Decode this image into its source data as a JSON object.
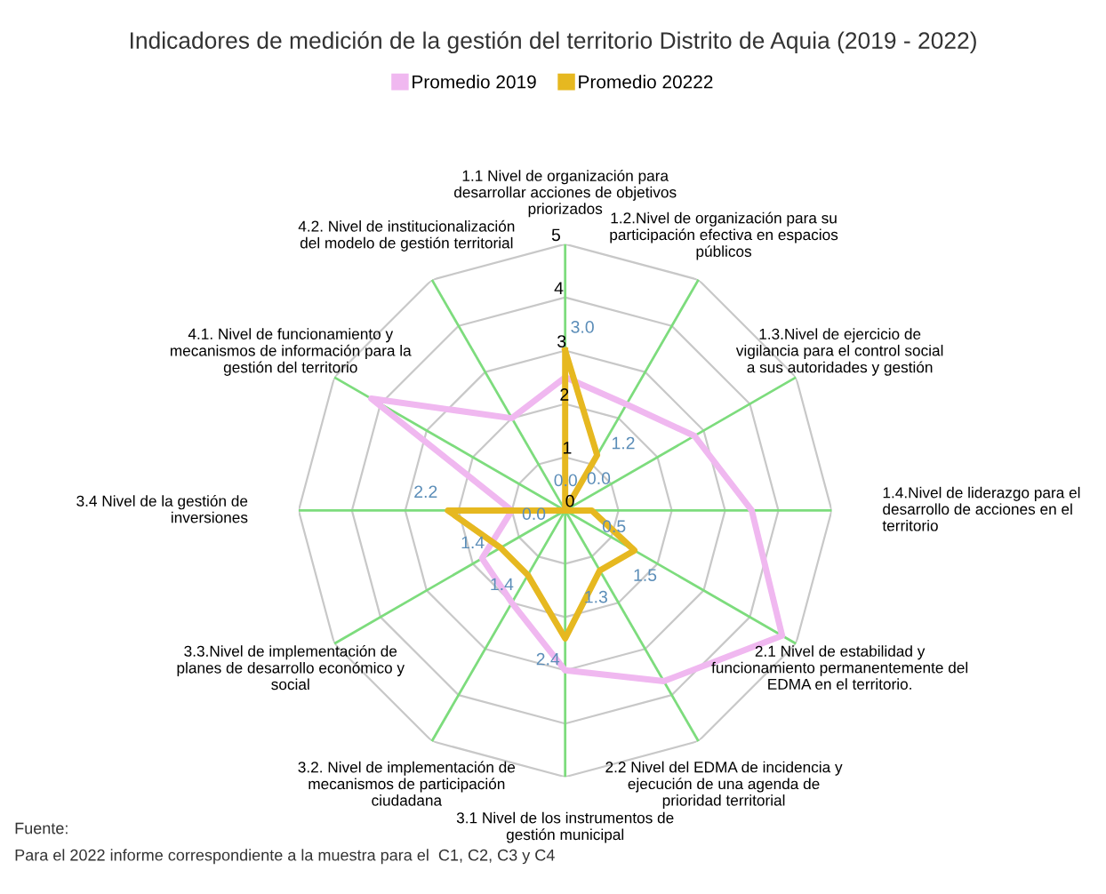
{
  "chart_data": {
    "type": "radar",
    "title": "Indicadores de medición de la gestión del territorio Distrito de Aquia (2019 - 2022)",
    "categories": [
      "1.1 Nivel de organización para desarrollar acciones de objetivos priorizados",
      "1.2.Nivel de organización para su participación efectiva en espacios públicos",
      "1.3.Nivel de ejercicio de vigilancia para el control social a sus autoridades y gestión",
      "1.4.Nivel de liderazgo para el desarrollo de acciones en el territorio",
      "2.1 Nivel de estabilidad y funcionamiento permanentemente del EDMA en el territorio.",
      "2.2 Nivel del EDMA de incidencia y ejecución de una agenda de prioridad territorial",
      "3.1 Nivel de los instrumentos de gestión municipal",
      "3.2. Nivel de implementación de mecanismos de participación ciudadana",
      "3.3.Nivel de implementación de planes de desarrollo económico y social",
      "3.4 Nivel de la gestión de inversiones",
      "4.1. Nivel de funcionamiento y mecanismos de información para la gestión del territorio",
      "4.2. Nivel de institucionalización del modelo de gestión territorial"
    ],
    "series": [
      {
        "name": "Promedio 2019",
        "color": "#f0b8f0",
        "values": [
          2.5,
          2.3,
          2.8,
          3.5,
          4.7,
          3.7,
          3.0,
          2.0,
          1.8,
          1.0,
          4.2,
          2.0
        ]
      },
      {
        "name": "Promedio 20222",
        "color": "#e6b820",
        "values": [
          3.0,
          1.2,
          0.0,
          0.5,
          1.5,
          1.3,
          2.4,
          1.4,
          1.4,
          2.2,
          0.0,
          0.0
        ],
        "value_labels": [
          "3.0",
          "1.2",
          "0.0",
          "0.5",
          "1.5",
          "1.3",
          "2.4",
          "1.4",
          "1.4",
          "2.2",
          "0.0",
          "0.0"
        ]
      }
    ],
    "ylim": [
      0,
      5
    ],
    "yticks": [
      0,
      1,
      2,
      3,
      4,
      5
    ],
    "grid": true,
    "legend": "top",
    "annotations": [
      "Fuente:",
      "Para el 2022 informe correspondiente a la muestra para el  C1, C2, C3 y C4"
    ]
  }
}
